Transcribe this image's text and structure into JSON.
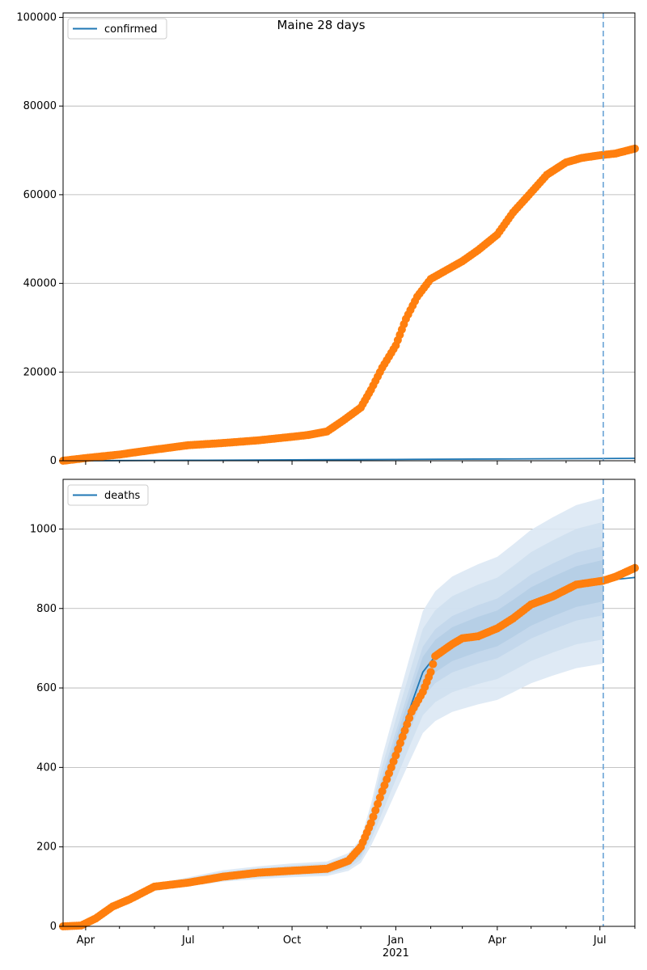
{
  "figure": {
    "title": "Maine 28 days"
  },
  "chart_data": [
    {
      "type": "line",
      "name": "confirmed-panel",
      "legend": {
        "entries": [
          "confirmed"
        ],
        "placement": "top-left"
      },
      "ylim": [
        0,
        101000
      ],
      "yticks": [
        0,
        20000,
        40000,
        60000,
        80000,
        100000
      ],
      "ytick_labels": [
        "0",
        "20000",
        "40000",
        "60000",
        "80000",
        "100000"
      ],
      "grid": "y",
      "forecast_start": "2021-07-04",
      "series": [
        {
          "name": "confirmed",
          "color": "#1f77b4",
          "x": [
            "2020-03-12",
            "2020-07-01",
            "2020-10-01",
            "2021-01-01",
            "2021-04-01",
            "2021-07-04",
            "2021-08-01"
          ],
          "y": [
            0,
            100,
            200,
            300,
            400,
            500,
            550
          ]
        },
        {
          "name": "",
          "color": "#ff7f0e",
          "x": [
            "2020-03-12",
            "2020-04-01",
            "2020-05-01",
            "2020-06-01",
            "2020-07-01",
            "2020-08-01",
            "2020-09-01",
            "2020-10-01",
            "2020-10-15",
            "2020-11-01",
            "2020-11-15",
            "2020-12-01",
            "2020-12-10",
            "2020-12-20",
            "2021-01-01",
            "2021-01-10",
            "2021-01-20",
            "2021-02-01",
            "2021-02-15",
            "2021-03-01",
            "2021-03-15",
            "2021-04-01",
            "2021-04-15",
            "2021-05-01",
            "2021-05-15",
            "2021-06-01",
            "2021-06-15",
            "2021-07-01",
            "2021-07-15",
            "2021-08-01"
          ],
          "y": [
            0,
            600,
            1400,
            2500,
            3500,
            4000,
            4600,
            5400,
            5800,
            6600,
            9000,
            12000,
            16000,
            21000,
            26000,
            32000,
            37000,
            41000,
            43000,
            45000,
            47500,
            51000,
            56000,
            60500,
            64500,
            67300,
            68300,
            68900,
            69300,
            70400
          ]
        }
      ]
    },
    {
      "type": "line",
      "name": "deaths-panel",
      "legend": {
        "entries": [
          "deaths"
        ],
        "placement": "top-left"
      },
      "ylim": [
        0,
        1125
      ],
      "yticks": [
        0,
        200,
        400,
        600,
        800,
        1000
      ],
      "ytick_labels": [
        "0",
        "200",
        "400",
        "600",
        "800",
        "1000"
      ],
      "xticks": [
        "2020-04-01",
        "2020-07-01",
        "2020-10-01",
        "2021-01-01",
        "2021-04-01",
        "2021-07-01"
      ],
      "xtick_labels": [
        "Apr",
        "Jul",
        "Oct",
        "Jan",
        "Apr",
        "Jul"
      ],
      "xtick_year_label": "2021",
      "grid": "y",
      "forecast_start": "2021-07-04",
      "series": [
        {
          "name": "deaths",
          "color": "#1f77b4",
          "x": [
            "2020-03-12",
            "2020-03-28",
            "2020-04-10",
            "2020-04-25",
            "2020-05-10",
            "2020-06-01",
            "2020-07-01",
            "2020-08-01",
            "2020-09-01",
            "2020-10-01",
            "2020-11-01",
            "2020-11-20",
            "2020-12-01",
            "2020-12-10",
            "2020-12-20",
            "2021-01-01",
            "2021-01-15",
            "2021-01-25",
            "2021-02-05",
            "2021-02-20",
            "2021-03-01",
            "2021-03-15",
            "2021-04-01",
            "2021-04-15",
            "2021-05-01",
            "2021-05-20",
            "2021-06-10",
            "2021-07-04",
            "2021-08-01"
          ],
          "y": [
            0,
            2,
            18,
            48,
            68,
            98,
            112,
            127,
            135,
            141,
            145,
            162,
            190,
            255,
            345,
            445,
            560,
            640,
            680,
            710,
            720,
            735,
            750,
            775,
            805,
            830,
            855,
            870,
            878
          ]
        },
        {
          "name": "",
          "color": "#ff7f0e",
          "x": [
            "2020-03-12",
            "2020-03-28",
            "2020-04-10",
            "2020-04-25",
            "2020-05-10",
            "2020-06-01",
            "2020-07-01",
            "2020-08-01",
            "2020-09-01",
            "2020-10-01",
            "2020-11-01",
            "2020-11-20",
            "2020-12-01",
            "2020-12-10",
            "2020-12-20",
            "2021-01-01",
            "2021-01-15",
            "2021-01-25",
            "2021-02-01",
            "2021-02-05",
            "2021-02-20",
            "2021-03-01",
            "2021-03-15",
            "2021-04-01",
            "2021-04-15",
            "2021-05-01",
            "2021-05-20",
            "2021-06-10",
            "2021-07-04",
            "2021-07-15",
            "2021-08-01"
          ],
          "y": [
            0,
            2,
            20,
            50,
            68,
            100,
            110,
            125,
            135,
            140,
            145,
            165,
            200,
            260,
            340,
            430,
            540,
            590,
            640,
            680,
            710,
            725,
            730,
            750,
            775,
            810,
            830,
            860,
            870,
            880,
            902
          ]
        }
      ]
    }
  ]
}
